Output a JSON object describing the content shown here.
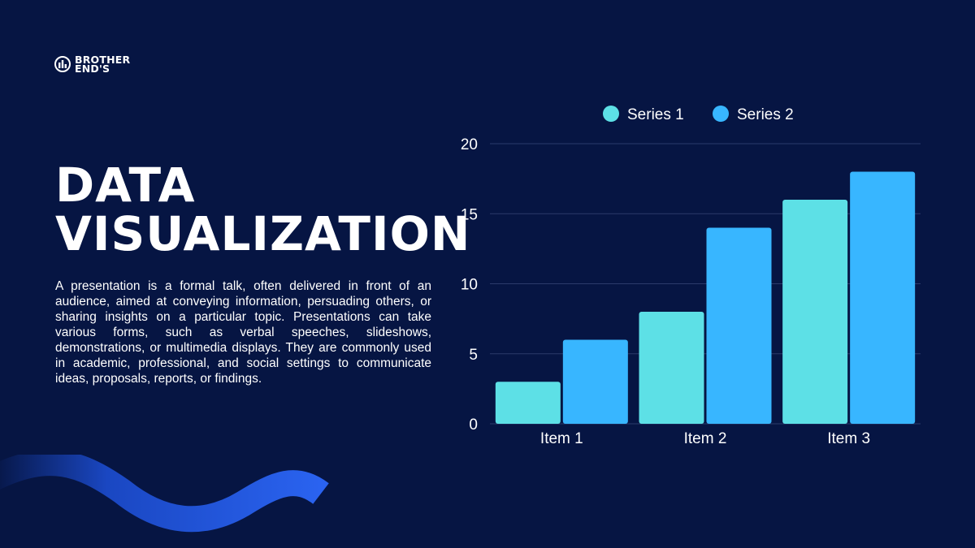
{
  "logo": {
    "line1": "BROTHER",
    "line2": "END'S"
  },
  "title": {
    "line1": "DATA",
    "line2": "VISUALIZATION"
  },
  "description": "A presentation is a formal talk, often delivered in front of an audience, aimed at conveying information, persuading others, or sharing insights on a particular topic. Presentations can take various forms, such as verbal speeches, slideshows, demonstrations, or multimedia displays. They are commonly used in academic, professional, and social settings to communicate ideas, proposals, reports, or findings.",
  "colors": {
    "background": "#061543",
    "series1": "#5DE0E6",
    "series2": "#38B6FF",
    "wave": "#1E5BEB"
  },
  "chart_data": {
    "type": "bar",
    "categories": [
      "Item 1",
      "Item 2",
      "Item 3"
    ],
    "series": [
      {
        "name": "Series 1",
        "values": [
          3,
          8,
          16
        ],
        "color": "#5DE0E6"
      },
      {
        "name": "Series 2",
        "values": [
          6,
          14,
          18
        ],
        "color": "#38B6FF"
      }
    ],
    "ylim": [
      0,
      20
    ],
    "yticks": [
      0,
      5,
      10,
      15,
      20
    ],
    "grid": true,
    "legend": "top"
  }
}
